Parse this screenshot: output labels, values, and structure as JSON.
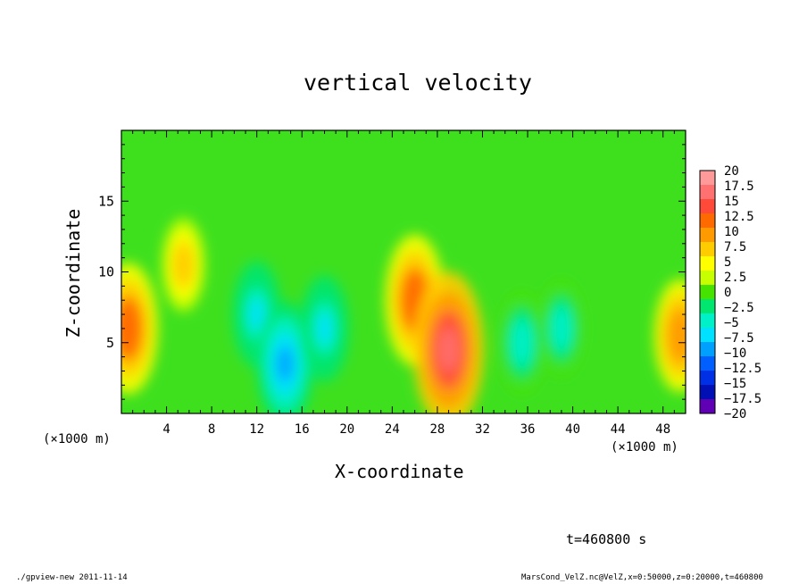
{
  "chart_data": {
    "type": "heatmap",
    "title": "vertical velocity",
    "xlabel": "X-coordinate",
    "ylabel": "Z-coordinate",
    "x_unit_label": "(×1000 m)",
    "x_unit_label_right": "(×1000 m)",
    "xlim": [
      0,
      50
    ],
    "ylim": [
      0,
      20
    ],
    "x_ticks": [
      4,
      8,
      12,
      16,
      20,
      24,
      28,
      32,
      36,
      40,
      44,
      48
    ],
    "y_ticks": [
      5,
      10,
      15
    ],
    "colorbar": {
      "levels": [
        20,
        17.5,
        15,
        12.5,
        10,
        7.5,
        5,
        2.5,
        0,
        -2.5,
        -5,
        -7.5,
        -10,
        -12.5,
        -15,
        -17.5,
        -20
      ],
      "colors": [
        "#ff9a9a",
        "#ff7070",
        "#ff4a3a",
        "#ff6a00",
        "#ff9a00",
        "#ffcc00",
        "#ffff00",
        "#c8ff00",
        "#46e300",
        "#00e66e",
        "#00f0c8",
        "#00e0ff",
        "#00a0ff",
        "#0060ff",
        "#0030e6",
        "#0010b4",
        "#6000b4"
      ]
    },
    "features": [
      {
        "x": 0.6,
        "z": 6.0,
        "value": 12
      },
      {
        "x": 5.5,
        "z": 10.5,
        "value": 6
      },
      {
        "x": 12,
        "z": 7,
        "value": -8
      },
      {
        "x": 14.5,
        "z": 3.5,
        "value": -11
      },
      {
        "x": 18,
        "z": 6,
        "value": -8
      },
      {
        "x": 26,
        "z": 8,
        "value": 12
      },
      {
        "x": 29,
        "z": 4.5,
        "value": 16
      },
      {
        "x": 35.5,
        "z": 5,
        "value": -7
      },
      {
        "x": 39,
        "z": 6,
        "value": -6
      },
      {
        "x": 49.5,
        "z": 5.5,
        "value": 9
      }
    ],
    "annotation": "t=460800 s"
  },
  "footer": {
    "left": "./gpview-new  2011-11-14",
    "right": "MarsCond_VelZ.nc@VelZ,x=0:50000,z=0:20000,t=460800"
  }
}
